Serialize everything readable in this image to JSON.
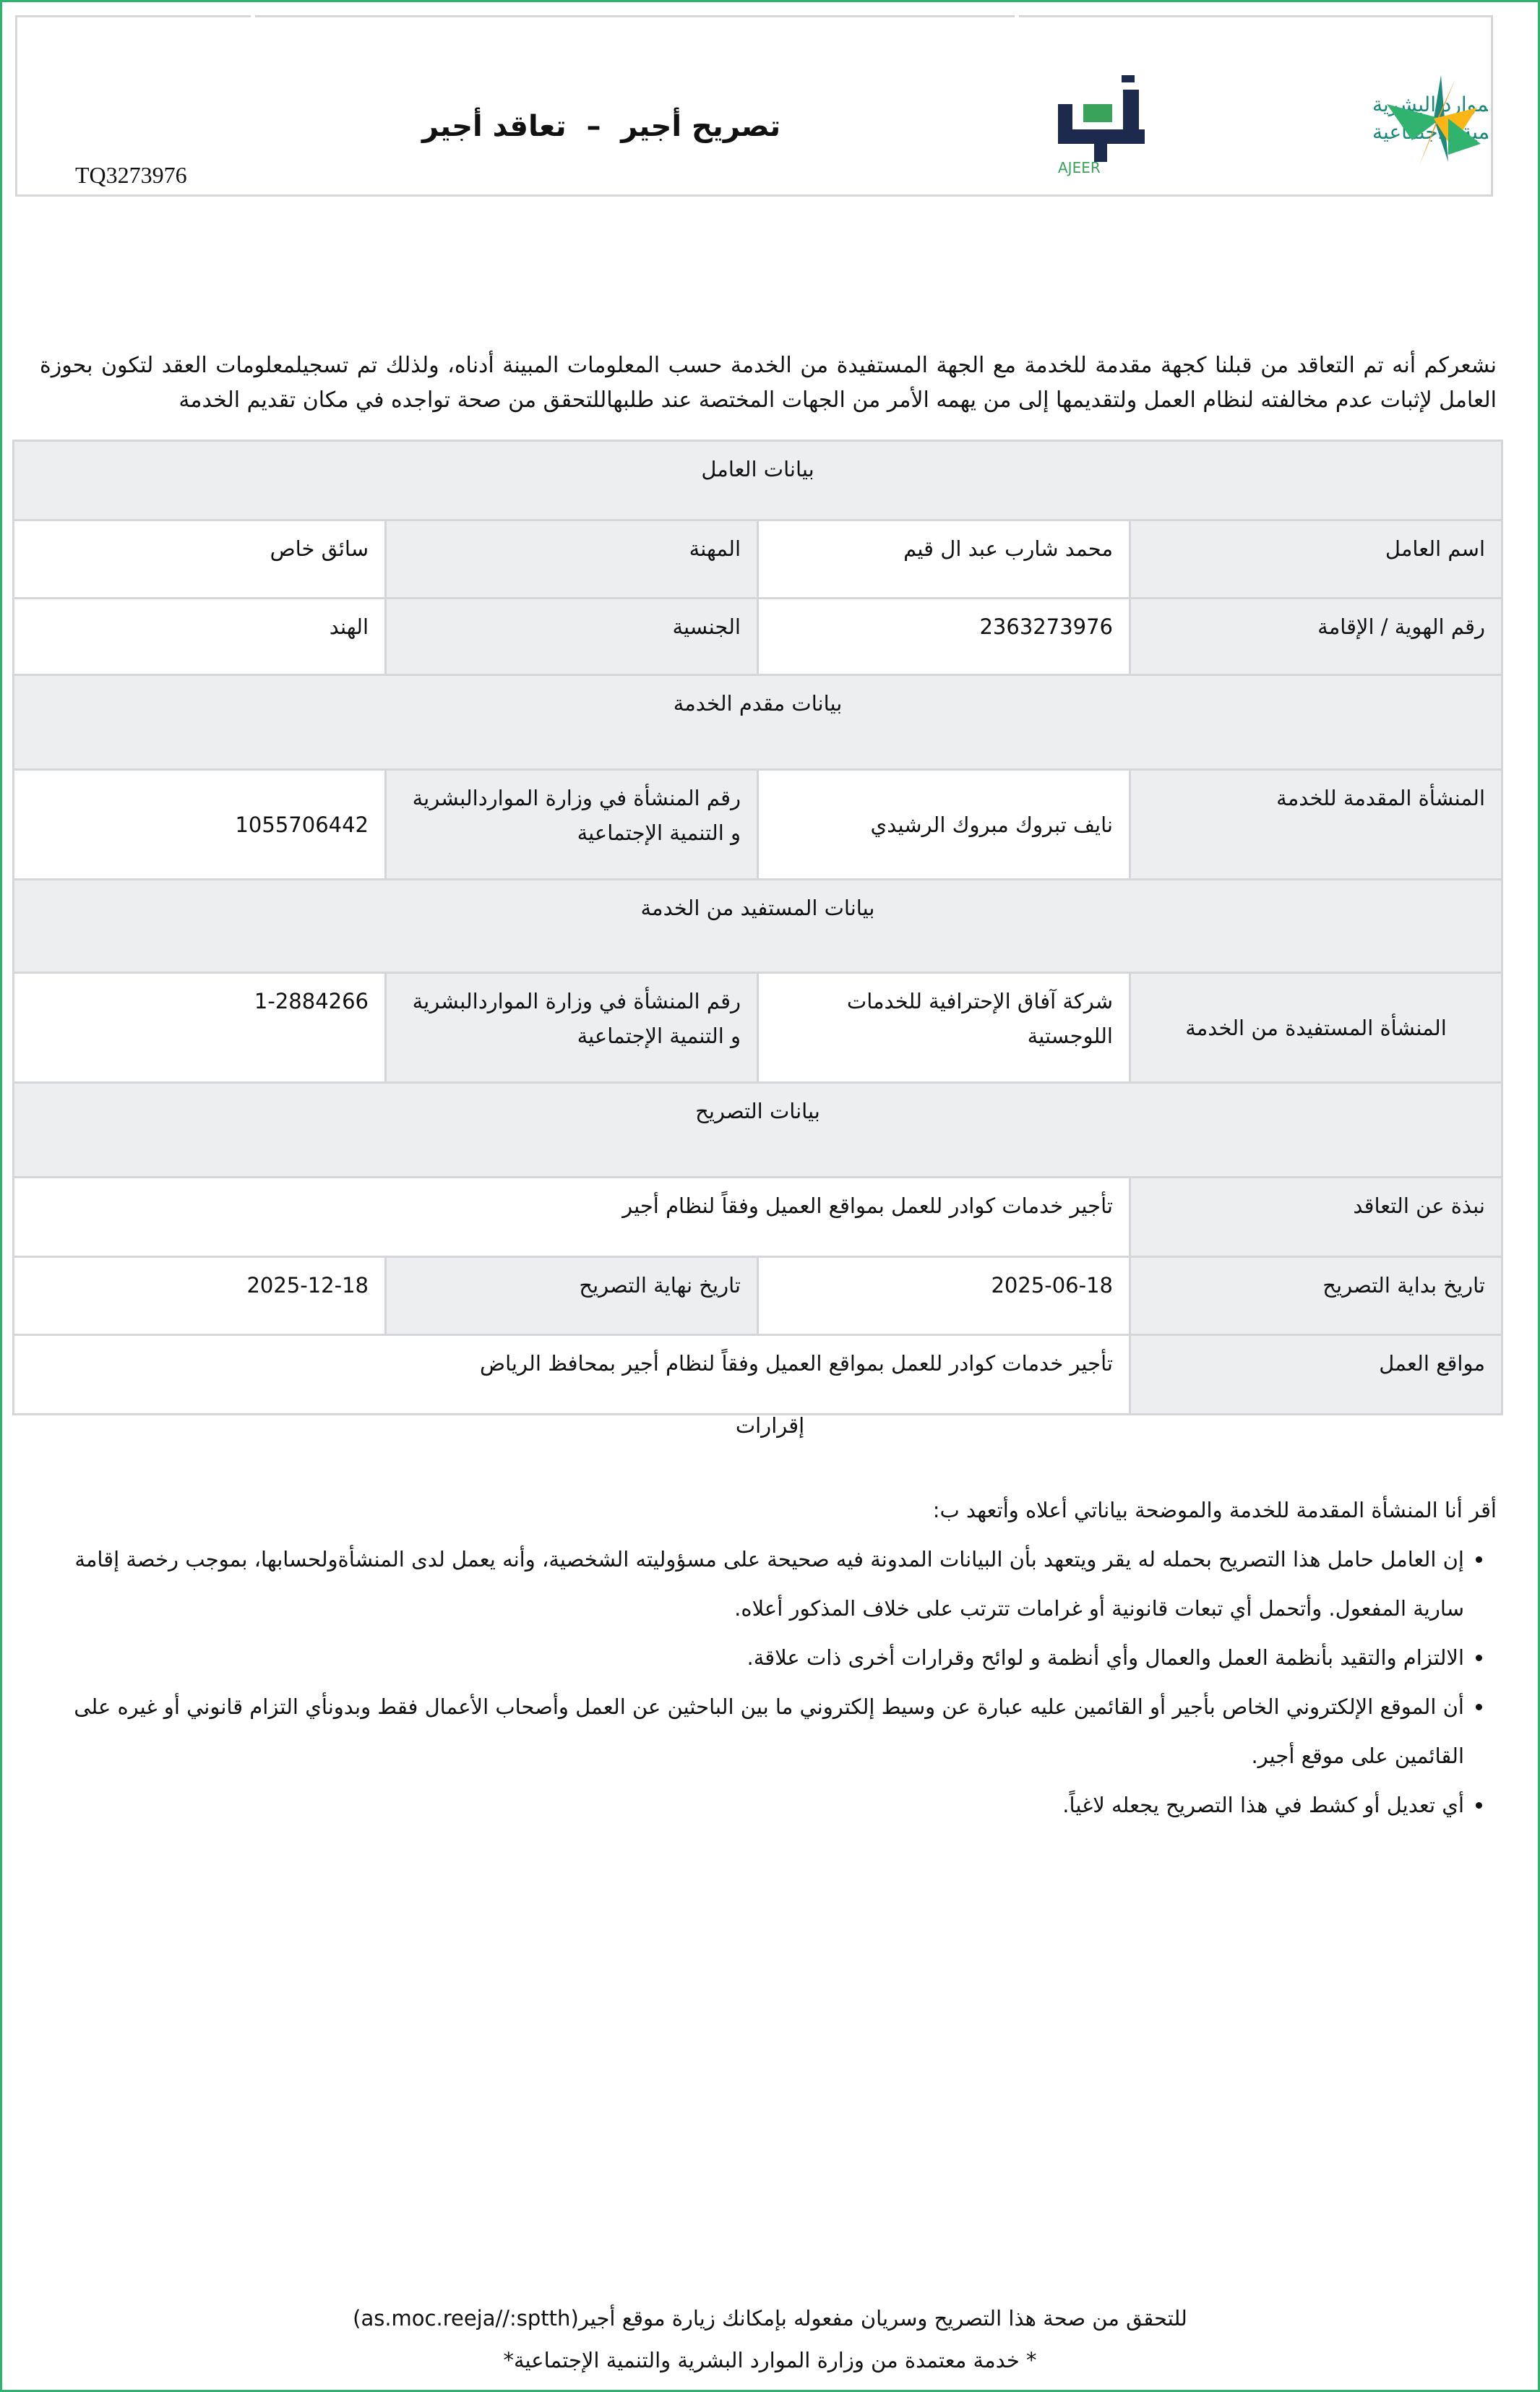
{
  "header": {
    "title": "تصريح أجير  –  تعاقد أجير",
    "reference": "TQ3273976",
    "logo_ajeer": "أجير AJEER",
    "logo_ministry": "الموارد البشرية والتنمية الاجتماعية"
  },
  "intro": "نشعركم أنه تم التعاقد من قبلنا كجهة مقدمة للخدمة مع الجهة المستفيدة من الخدمة حسب المعلومات المبينة أدناه، ولذلك تم تسجيلمعلومات العقد لتكون بحوزة العامل لإثبات عدم مخالفته لنظام العمل ولتقديمها إلى من يهمه الأمر من الجهات المختصة عند طلبهاللتحقق من صحة تواجده في مكان تقديم الخدمة",
  "worker": {
    "section": "بيانات العامل",
    "name_label": "اسم العامل",
    "name": "محمد شارب عبد ال قيم",
    "job_label": "المهنة",
    "job": "سائق خاص",
    "id_label": "رقم الهوية / الإقامة",
    "id": "2363273976",
    "nat_label": "الجنسية",
    "nat": "الهند"
  },
  "provider": {
    "section": "بيانات مقدم الخدمة",
    "label": "المنشأة المقدمة للخدمة",
    "name": "نايف تبروك مبروك الرشيدي",
    "num_label": "رقم المنشأة في وزارة المواردالبشرية و التنمية الإجتماعية",
    "num": "1055706442"
  },
  "beneficiary": {
    "section": "بيانات المستفيد من الخدمة",
    "label": "المنشأة المستفيدة من الخدمة",
    "name": "شركة آفاق الإحترافية للخدمات اللوجستية",
    "num_label": "رقم المنشأة في وزارة المواردالبشرية و التنمية الإجتماعية",
    "num": "1-2884266"
  },
  "permit": {
    "section": "بيانات التصريح",
    "about_label": "نبذة عن التعاقد",
    "about": "تأجير خدمات كوادر للعمل بمواقع العميل وفقاً لنظام أجير",
    "start_label": "تاريخ بداية التصريح",
    "start": "2025-06-18",
    "end_label": "تاريخ نهاية التصريح",
    "end": "2025-12-18",
    "loc_label": "مواقع العمل",
    "loc": "تأجير خدمات كوادر للعمل بمواقع العميل وفقاً لنظام أجير بمحافظ الرياض"
  },
  "declarations": {
    "title": "إقرارات",
    "intro": "أقر أنا المنشأة المقدمة للخدمة والموضحة بياناتي أعلاه وأتعهد ب:",
    "items": [
      "إن العامل حامل هذا التصريح بحمله له يقر ويتعهد بأن البيانات المدونة فيه صحيحة على مسؤوليته الشخصية، وأنه يعمل لدى المنشأةولحسابها، بموجب رخصة إقامة سارية المفعول. وأتحمل أي تبعات قانونية أو غرامات تترتب على خلاف المذكور أعلاه.",
      "الالتزام والتقيد بأنظمة العمل والعمال وأي أنظمة و لوائح وقرارات أخرى ذات علاقة.",
      "أن الموقع الإلكتروني الخاص بأجير أو القائمين عليه عبارة عن وسيط إلكتروني ما بين الباحثين عن العمل وأصحاب الأعمال فقط وبدونأي التزام قانوني أو غيره على القائمين على موقع أجير.",
      "أي تعديل أو كشط في هذا التصريح يجعله لاغياً."
    ]
  },
  "footer": {
    "verify": "للتحقق من صحة هذا التصريح وسريان مفعوله بإمكانك زيارة موقع أجير(as.moc.reeja//:sptth)",
    "approved": "* خدمة معتمدة من وزارة الموارد البشرية والتنمية الإجتماعية*"
  },
  "colors": {
    "border": "#2fb36f",
    "cell_border": "#d4d6da",
    "section_bg": "#eceeef",
    "ajeer_navy": "#1d2a4d",
    "ajeer_green": "#3aa35b"
  }
}
